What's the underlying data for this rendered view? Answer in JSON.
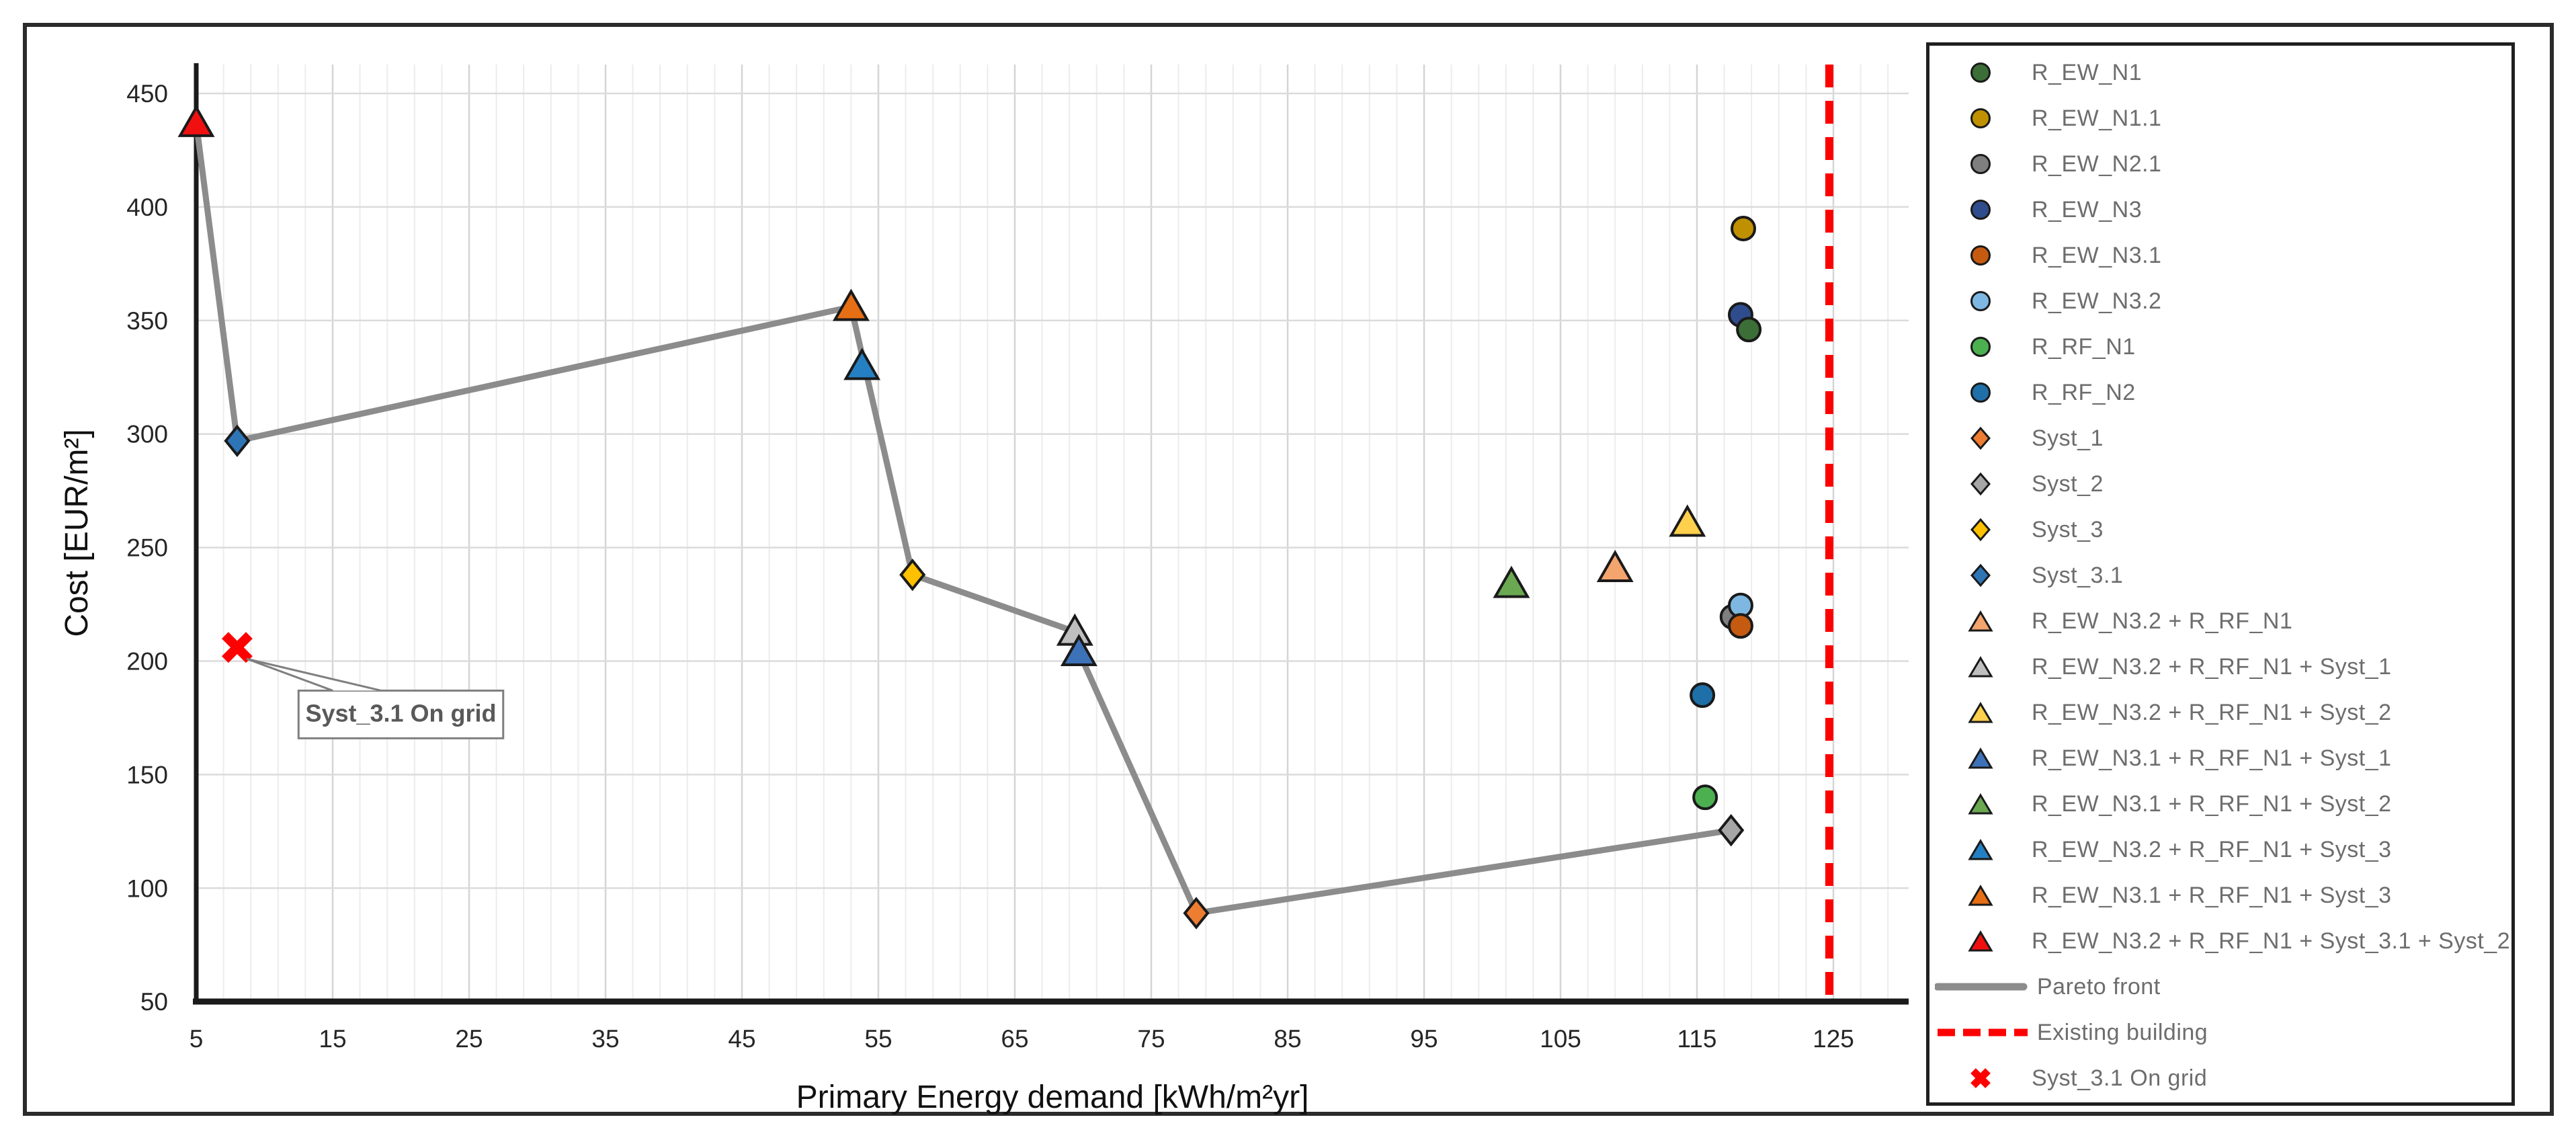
{
  "chart_data": {
    "type": "scatter",
    "title": "",
    "xlabel": "Primary Energy demand [kWh/m²yr]",
    "ylabel": "Cost [EUR/m²]",
    "xlim": [
      5,
      130
    ],
    "ylim": [
      50,
      462
    ],
    "x_ticks": [
      5,
      15,
      25,
      35,
      45,
      55,
      65,
      75,
      85,
      95,
      105,
      115,
      125
    ],
    "y_ticks": [
      50,
      100,
      150,
      200,
      250,
      300,
      350,
      400,
      450
    ],
    "grid": {
      "x_minor_step": 2,
      "x_major_step": 10,
      "y_major_step": 50,
      "legend_position": "right"
    },
    "points": [
      {
        "name": "R_EW_N2.1",
        "marker": "circle",
        "color": "#7F7F7F",
        "x": 117.6,
        "y": 219.5
      },
      {
        "name": "R_EW_N3.2",
        "marker": "circle",
        "color": "#7EB8E2",
        "x": 118.2,
        "y": 224.5
      },
      {
        "name": "R_EW_N3.1",
        "marker": "circle",
        "color": "#C55A11",
        "x": 118.2,
        "y": 215.5
      },
      {
        "name": "R_EW_N3",
        "marker": "circle",
        "color": "#2F4D8C",
        "x": 118.2,
        "y": 352.5
      },
      {
        "name": "R_EW_N1",
        "marker": "circle",
        "color": "#3C6E37",
        "x": 118.8,
        "y": 346
      },
      {
        "name": "R_EW_N1.1",
        "marker": "circle",
        "color": "#BF9000",
        "x": 118.4,
        "y": 390.5
      },
      {
        "name": "R_RF_N1",
        "marker": "circle",
        "color": "#4CAF50",
        "x": 115.6,
        "y": 140
      },
      {
        "name": "R_RF_N2",
        "marker": "circle",
        "color": "#1F6FA8",
        "x": 115.4,
        "y": 185
      },
      {
        "name": "Syst_1",
        "marker": "diamond",
        "color": "#ED7D31",
        "x": 78.3,
        "y": 89
      },
      {
        "name": "Syst_2",
        "marker": "diamond",
        "color": "#A6A6A6",
        "x": 117.5,
        "y": 125.5
      },
      {
        "name": "Syst_3",
        "marker": "diamond",
        "color": "#FFC000",
        "x": 57.5,
        "y": 238
      },
      {
        "name": "Syst_3.1",
        "marker": "diamond",
        "color": "#2E75B6",
        "x": 8,
        "y": 297
      },
      {
        "name": "R_EW_N3.2 + R_RF_N1",
        "marker": "triangle",
        "color": "#F4A46D",
        "x": 109,
        "y": 241
      },
      {
        "name": "R_EW_N3.2 + R_RF_N1 + Syst_1",
        "marker": "triangle",
        "color": "#BFBFBF",
        "x": 69.4,
        "y": 213
      },
      {
        "name": "R_EW_N3.2 + R_RF_N1 + Syst_2",
        "marker": "triangle",
        "color": "#FFD04D",
        "x": 114.3,
        "y": 261
      },
      {
        "name": "R_EW_N3.1 + R_RF_N1 + Syst_1",
        "marker": "triangle",
        "color": "#3E72B8",
        "x": 69.7,
        "y": 204
      },
      {
        "name": "R_EW_N3.1 + R_RF_N1 + Syst_2",
        "marker": "triangle",
        "color": "#6AA852",
        "x": 101.4,
        "y": 234
      },
      {
        "name": "R_EW_N3.2 + R_RF_N1 + Syst_3",
        "marker": "triangle",
        "color": "#2580C3",
        "x": 53.8,
        "y": 330
      },
      {
        "name": "R_EW_N3.1 + R_RF_N1 + Syst_3",
        "marker": "triangle",
        "color": "#E66E14",
        "x": 53,
        "y": 356
      },
      {
        "name": "R_EW_N3.2 + R_RF_N1 + Syst_3.1 + Syst_2",
        "marker": "triangle",
        "color": "#F01010",
        "x": 5,
        "y": 437
      },
      {
        "name": "Syst_3.1 On grid",
        "marker": "x",
        "color": "#FF0000",
        "x": 8,
        "y": 206
      }
    ],
    "pareto_front": {
      "label": "Pareto front",
      "color": "#8C8C8C",
      "points": [
        [
          5,
          437
        ],
        [
          8,
          297
        ],
        [
          53,
          356
        ],
        [
          57.5,
          238
        ],
        [
          69.4,
          213
        ],
        [
          69.7,
          204
        ],
        [
          78.3,
          89
        ],
        [
          117.5,
          125.5
        ]
      ]
    },
    "existing_building": {
      "label": "Existing building",
      "color": "#FF0000",
      "x": 124.7
    },
    "callout": {
      "text": "Syst_3.1 On grid",
      "anchor_x": 8.7,
      "anchor_y": 201,
      "box_x1": 12.5,
      "box_y1": 187,
      "box_x2": 27.5,
      "box_y2": 166
    }
  },
  "legend": {
    "items": [
      {
        "label": "R_EW_N1",
        "marker": "circle",
        "color": "#3C6E37"
      },
      {
        "label": "R_EW_N1.1",
        "marker": "circle",
        "color": "#BF9000"
      },
      {
        "label": "R_EW_N2.1",
        "marker": "circle",
        "color": "#7F7F7F"
      },
      {
        "label": "R_EW_N3",
        "marker": "circle",
        "color": "#2F4D8C"
      },
      {
        "label": "R_EW_N3.1",
        "marker": "circle",
        "color": "#C55A11"
      },
      {
        "label": "R_EW_N3.2",
        "marker": "circle",
        "color": "#7EB8E2"
      },
      {
        "label": "R_RF_N1",
        "marker": "circle",
        "color": "#4CAF50"
      },
      {
        "label": "R_RF_N2",
        "marker": "circle",
        "color": "#1F6FA8"
      },
      {
        "label": "Syst_1",
        "marker": "diamond",
        "color": "#ED7D31"
      },
      {
        "label": "Syst_2",
        "marker": "diamond",
        "color": "#A6A6A6"
      },
      {
        "label": "Syst_3",
        "marker": "diamond",
        "color": "#FFC000"
      },
      {
        "label": "Syst_3.1",
        "marker": "diamond",
        "color": "#2E75B6"
      },
      {
        "label": "R_EW_N3.2 + R_RF_N1",
        "marker": "triangle",
        "color": "#F4A46D"
      },
      {
        "label": "R_EW_N3.2 + R_RF_N1 + Syst_1",
        "marker": "triangle",
        "color": "#BFBFBF"
      },
      {
        "label": "R_EW_N3.2 + R_RF_N1 + Syst_2",
        "marker": "triangle",
        "color": "#FFD04D"
      },
      {
        "label": "R_EW_N3.1 + R_RF_N1 + Syst_1",
        "marker": "triangle",
        "color": "#3E72B8"
      },
      {
        "label": "R_EW_N3.1 + R_RF_N1 + Syst_2",
        "marker": "triangle",
        "color": "#6AA852"
      },
      {
        "label": "R_EW_N3.2 + R_RF_N1 + Syst_3",
        "marker": "triangle",
        "color": "#2580C3"
      },
      {
        "label": "R_EW_N3.1 + R_RF_N1 + Syst_3",
        "marker": "triangle",
        "color": "#E66E14"
      },
      {
        "label": "R_EW_N3.2 + R_RF_N1 + Syst_3.1 + Syst_2",
        "marker": "triangle",
        "color": "#F01010"
      },
      {
        "label": "Pareto front",
        "marker": "line",
        "color": "#8C8C8C"
      },
      {
        "label": "Existing building",
        "marker": "dash",
        "color": "#FF0000"
      },
      {
        "label": "Syst_3.1 On grid",
        "marker": "x",
        "color": "#FF0000"
      }
    ]
  }
}
